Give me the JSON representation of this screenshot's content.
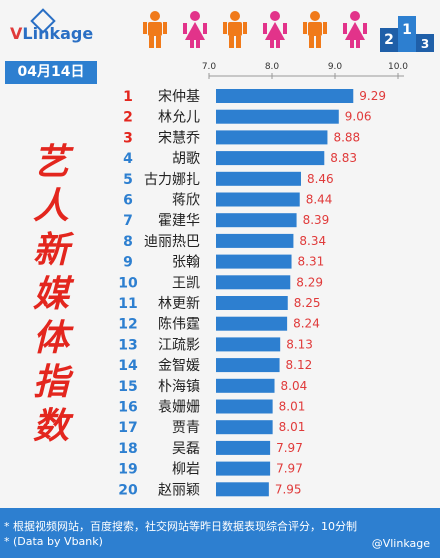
{
  "header": {
    "logo_prefix": "V",
    "logo_rest": "Linkage",
    "date": "04月14日"
  },
  "title_vertical": "艺人新媒体指数",
  "footer": {
    "note1": "* 根据视频网站，百度搜索，社交网站等昨日数据表现综合评分，10分制",
    "note2": "* (Data by Vbank)",
    "watermark": "@Vlinkage"
  },
  "colors": {
    "bar": "#2d7fd0",
    "value": "#e03a3a",
    "rank_top3": "#e3261e",
    "rank_rest": "#2d7fd0",
    "title": "#e3261e",
    "person_orange": "#f07a1a",
    "person_pink": "#e2338a"
  },
  "icons": [
    "person-orange-icon",
    "person-pink-icon",
    "person-orange-icon",
    "person-pink-icon",
    "person-orange-icon",
    "person-pink-icon",
    "podium-icon"
  ],
  "podium_text": "2 1 3",
  "chart_data": {
    "type": "bar",
    "orientation": "horizontal",
    "x_ticks": [
      7.0,
      8.0,
      9.0,
      10.0
    ],
    "x_tick_labels": [
      "7.0",
      "8.0",
      "9.0",
      "10.0"
    ],
    "xlim": [
      7.0,
      10.0
    ],
    "categories": [
      "宋仲基",
      "林允儿",
      "宋慧乔",
      "胡歌",
      "古力娜扎",
      "蒋欣",
      "霍建华",
      "迪丽热巴",
      "张翰",
      "王凯",
      "林更新",
      "陈伟霆",
      "江疏影",
      "金智媛",
      "朴海镇",
      "袁姗姗",
      "贾青",
      "吴磊",
      "柳岩",
      "赵丽颖"
    ],
    "ranks": [
      "1",
      "2",
      "3",
      "4",
      "5",
      "6",
      "7",
      "8",
      "9",
      "10",
      "11",
      "12",
      "13",
      "14",
      "15",
      "16",
      "17",
      "18",
      "19",
      "20"
    ],
    "values": [
      9.29,
      9.06,
      8.88,
      8.83,
      8.46,
      8.44,
      8.39,
      8.34,
      8.31,
      8.29,
      8.25,
      8.24,
      8.13,
      8.12,
      8.04,
      8.01,
      8.01,
      7.97,
      7.97,
      7.95
    ],
    "value_labels": [
      "9.29",
      "9.06",
      "8.88",
      "8.83",
      "8.46",
      "8.44",
      "8.39",
      "8.34",
      "8.31",
      "8.29",
      "8.25",
      "8.24",
      "8.13",
      "8.12",
      "8.04",
      "8.01",
      "8.01",
      "7.97",
      "7.97",
      "7.95"
    ]
  }
}
